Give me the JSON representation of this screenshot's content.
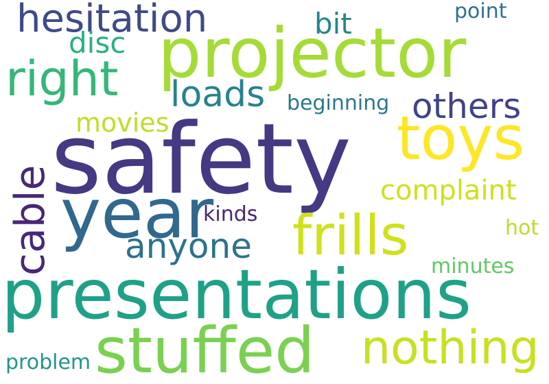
{
  "words": [
    {
      "id": "safety",
      "text": "safety",
      "color": "#443983"
    },
    {
      "id": "projector",
      "text": "projector",
      "color": "#a5db36"
    },
    {
      "id": "presentations",
      "text": "presentations",
      "color": "#1fa188"
    },
    {
      "id": "stuffed",
      "text": "stuffed",
      "color": "#7ad151"
    },
    {
      "id": "year",
      "text": "year",
      "color": "#31688e"
    },
    {
      "id": "toys",
      "text": "toys",
      "color": "#fde725"
    },
    {
      "id": "frills",
      "text": "frills",
      "color": "#d0e11c"
    },
    {
      "id": "nothing",
      "text": "nothing",
      "color": "#c8e020"
    },
    {
      "id": "hesitation",
      "text": "hesitation",
      "color": "#3e4a89"
    },
    {
      "id": "right",
      "text": "right",
      "color": "#35b779"
    },
    {
      "id": "cable",
      "text": "cable",
      "color": "#482878"
    },
    {
      "id": "anyone",
      "text": "anyone",
      "color": "#2c728e"
    },
    {
      "id": "others",
      "text": "others",
      "color": "#404387"
    },
    {
      "id": "loads",
      "text": "loads",
      "color": "#26828e"
    },
    {
      "id": "complaint",
      "text": "complaint",
      "color": "#cde11d"
    },
    {
      "id": "disc",
      "text": "disc",
      "color": "#2ab07f"
    },
    {
      "id": "movies",
      "text": "movies",
      "color": "#bddf26"
    },
    {
      "id": "bit",
      "text": "bit",
      "color": "#25858e"
    },
    {
      "id": "point",
      "text": "point",
      "color": "#2c718e"
    },
    {
      "id": "beginning",
      "text": "beginning",
      "color": "#2a778e"
    },
    {
      "id": "kinds",
      "text": "kinds",
      "color": "#482677"
    },
    {
      "id": "hot",
      "text": "hot",
      "color": "#bade28"
    },
    {
      "id": "minutes",
      "text": "minutes",
      "color": "#5ec962"
    },
    {
      "id": "problem",
      "text": "problem",
      "color": "#1f968b"
    }
  ]
}
